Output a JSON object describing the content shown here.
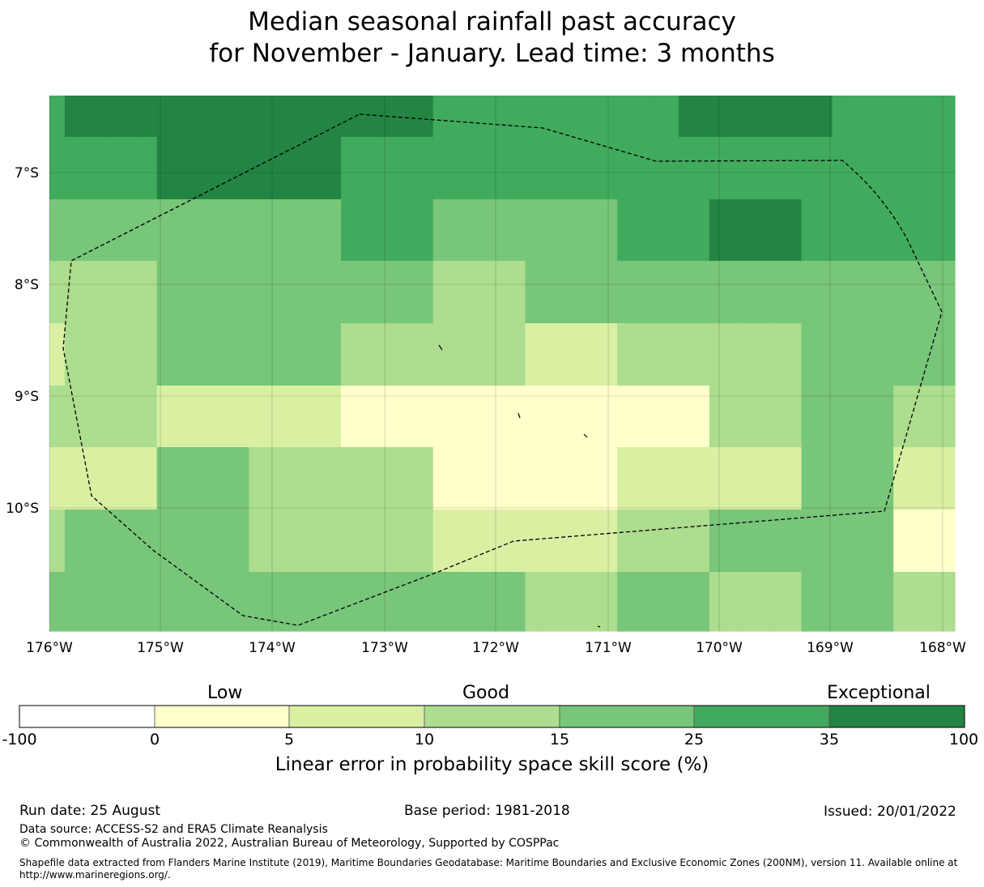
{
  "title": {
    "line1": "Median seasonal rainfall past accuracy",
    "line2": "for November - January. Lead time: 3 months"
  },
  "map": {
    "lon_labels": [
      "176°W",
      "175°W",
      "174°W",
      "173°W",
      "172°W",
      "171°W",
      "170°W",
      "169°W",
      "168°W"
    ],
    "lat_labels": [
      "7°S",
      "8°S",
      "9°S",
      "10°S"
    ],
    "palette": [
      "#ffffff",
      "#ffffcc",
      "#d9f0a3",
      "#addd8e",
      "#78c679",
      "#41ab5d",
      "#238443"
    ],
    "grid_rows": [
      [
        5,
        6,
        6,
        6,
        6,
        6,
        6,
        6,
        6,
        6,
        6,
        6,
        6,
        6,
        6,
        6,
        6,
        6,
        6,
        6,
        6,
        6,
        6,
        6,
        6,
        5,
        5,
        5,
        5,
        5,
        5,
        5,
        5,
        5,
        5,
        5,
        5,
        5,
        5,
        5,
        5,
        6,
        6,
        6,
        6,
        6,
        6,
        6,
        6,
        6,
        6,
        5,
        5,
        5,
        5,
        5,
        5,
        5,
        5
      ],
      [
        5,
        5,
        5,
        5,
        5,
        5,
        5,
        6,
        6,
        6,
        6,
        6,
        6,
        6,
        6,
        6,
        6,
        6,
        6,
        5,
        5,
        5,
        5,
        5,
        5,
        5,
        5,
        5,
        5,
        5,
        5,
        5,
        5,
        5,
        5,
        5,
        5,
        5,
        5,
        5,
        5,
        5,
        5,
        5,
        5,
        5,
        5,
        5,
        5,
        5,
        5,
        5,
        5,
        5,
        5,
        5,
        5,
        5,
        5
      ],
      [
        4,
        4,
        4,
        4,
        4,
        4,
        4,
        4,
        4,
        4,
        4,
        4,
        4,
        4,
        4,
        4,
        4,
        4,
        4,
        5,
        5,
        5,
        5,
        5,
        5,
        4,
        4,
        4,
        4,
        4,
        4,
        4,
        4,
        4,
        4,
        4,
        4,
        5,
        5,
        5,
        5,
        5,
        5,
        6,
        6,
        6,
        6,
        6,
        6,
        5,
        5,
        5,
        5,
        5,
        5,
        5,
        5,
        5,
        5
      ],
      [
        3,
        3,
        3,
        3,
        3,
        3,
        3,
        4,
        4,
        4,
        4,
        4,
        4,
        4,
        4,
        4,
        4,
        4,
        4,
        4,
        4,
        4,
        4,
        4,
        4,
        3,
        3,
        3,
        3,
        3,
        3,
        4,
        4,
        4,
        4,
        4,
        4,
        4,
        4,
        4,
        4,
        4,
        4,
        4,
        4,
        4,
        4,
        4,
        4,
        4,
        4,
        4,
        4,
        4,
        4,
        4,
        4,
        4,
        4
      ],
      [
        2,
        3,
        3,
        3,
        3,
        3,
        3,
        4,
        4,
        4,
        4,
        4,
        4,
        4,
        4,
        4,
        4,
        4,
        4,
        3,
        3,
        3,
        3,
        3,
        3,
        3,
        3,
        3,
        3,
        3,
        3,
        2,
        2,
        2,
        2,
        2,
        2,
        3,
        3,
        3,
        3,
        3,
        3,
        3,
        3,
        3,
        3,
        3,
        3,
        4,
        4,
        4,
        4,
        4,
        4,
        4,
        4,
        4,
        4
      ],
      [
        3,
        3,
        3,
        3,
        3,
        3,
        3,
        2,
        2,
        2,
        2,
        2,
        2,
        2,
        2,
        2,
        2,
        2,
        2,
        1,
        1,
        1,
        1,
        1,
        1,
        1,
        1,
        1,
        1,
        1,
        1,
        1,
        1,
        1,
        1,
        1,
        1,
        1,
        1,
        1,
        1,
        1,
        1,
        3,
        3,
        3,
        3,
        3,
        3,
        4,
        4,
        4,
        4,
        4,
        4,
        3,
        3,
        3,
        3
      ],
      [
        2,
        2,
        2,
        2,
        2,
        2,
        2,
        4,
        4,
        4,
        4,
        4,
        4,
        3,
        3,
        3,
        3,
        3,
        3,
        3,
        3,
        3,
        3,
        3,
        3,
        1,
        1,
        1,
        1,
        1,
        1,
        1,
        1,
        1,
        1,
        1,
        1,
        2,
        2,
        2,
        2,
        2,
        2,
        2,
        2,
        2,
        2,
        2,
        2,
        4,
        4,
        4,
        4,
        4,
        4,
        2,
        2,
        2,
        2
      ],
      [
        3,
        4,
        4,
        4,
        4,
        4,
        4,
        4,
        4,
        4,
        4,
        4,
        4,
        3,
        3,
        3,
        3,
        3,
        3,
        3,
        3,
        3,
        3,
        3,
        3,
        2,
        2,
        2,
        2,
        2,
        2,
        2,
        2,
        2,
        2,
        2,
        2,
        3,
        3,
        3,
        3,
        3,
        3,
        4,
        4,
        4,
        4,
        4,
        4,
        4,
        4,
        4,
        4,
        4,
        4,
        1,
        1,
        1,
        1
      ],
      [
        4,
        4,
        4,
        4,
        4,
        4,
        4,
        4,
        4,
        4,
        4,
        4,
        4,
        4,
        4,
        4,
        4,
        4,
        4,
        4,
        4,
        4,
        4,
        4,
        4,
        4,
        4,
        4,
        4,
        4,
        4,
        3,
        3,
        3,
        3,
        3,
        3,
        4,
        4,
        4,
        4,
        4,
        4,
        3,
        3,
        3,
        3,
        3,
        3,
        4,
        4,
        4,
        4,
        4,
        4,
        3,
        3,
        3,
        3
      ]
    ]
  },
  "legend": {
    "category_low": "Low",
    "category_good": "Good",
    "category_exceptional": "Exceptional",
    "ticks": [
      "-100",
      "0",
      "5",
      "10",
      "15",
      "25",
      "35",
      "100"
    ],
    "title": "Linear error in probability space skill score (%)"
  },
  "footer": {
    "run_date": "Run date: 25 August",
    "base_period": "Base period: 1981-2018",
    "issued": "Issued: 20/01/2022",
    "data_source": "Data source: ACCESS-S2 and ERA5 Climate Reanalysis",
    "copyright": "© Commonwealth of Australia 2022, Australian Bureau of Meteorology, Supported by COSPPac",
    "shapefile": "Shapefile data extracted from Flanders Marine Institute (2019), Maritime Boundaries Geodatabase: Maritime Boundaries and Exclusive Economic Zones (200NM), version 11. Available online at http://www.marineregions.org/."
  }
}
